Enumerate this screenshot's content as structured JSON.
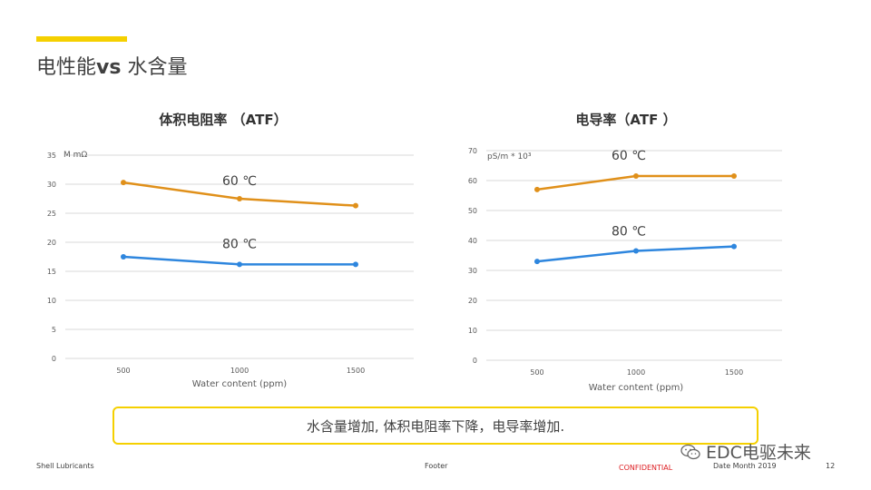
{
  "slide": {
    "title_part1": "电性能",
    "title_bold": "vs",
    "title_part2": " 水含量"
  },
  "callout_text": "水含量增加, 体积电阻率下降，电导率增加.",
  "footer": {
    "left": "Shell Lubricants",
    "center": "Footer",
    "confidential": "CONFIDENTIAL",
    "date": "Date Month 2019",
    "page": "12"
  },
  "watermark": {
    "text": "EDC电驱未来",
    "icon": "wechat-icon"
  },
  "colors": {
    "accent": "#f5d000",
    "series_60": "#e0901a",
    "series_80": "#2e86de",
    "confidential": "#dd1d21"
  },
  "chart_data": [
    {
      "type": "line",
      "title": "体积电阻率 （ATF）",
      "unit_label": "M mΩ",
      "xlabel": "Water content (ppm)",
      "categories": [
        "500",
        "1000",
        "1500"
      ],
      "ylim": [
        0,
        35
      ],
      "yticks": [
        0,
        5,
        10,
        15,
        20,
        25,
        30,
        35
      ],
      "grid": true,
      "series": [
        {
          "name": "60 ℃",
          "color": "#e0901a",
          "values": [
            30.3,
            27.5,
            26.3
          ]
        },
        {
          "name": "80 ℃",
          "color": "#2e86de",
          "values": [
            17.5,
            16.2,
            16.2
          ]
        }
      ]
    },
    {
      "type": "line",
      "title": "电导率（ATF ）",
      "unit_label": "pS/m * 10³",
      "xlabel": "Water content (ppm)",
      "categories": [
        "500",
        "1000",
        "1500"
      ],
      "ylim": [
        0,
        70
      ],
      "yticks": [
        0,
        10,
        20,
        30,
        40,
        50,
        60,
        70
      ],
      "grid": true,
      "series": [
        {
          "name": "60 ℃",
          "color": "#e0901a",
          "values": [
            57,
            61.5,
            61.5
          ]
        },
        {
          "name": "80 ℃",
          "color": "#2e86de",
          "values": [
            33,
            36.5,
            38
          ]
        }
      ]
    }
  ]
}
